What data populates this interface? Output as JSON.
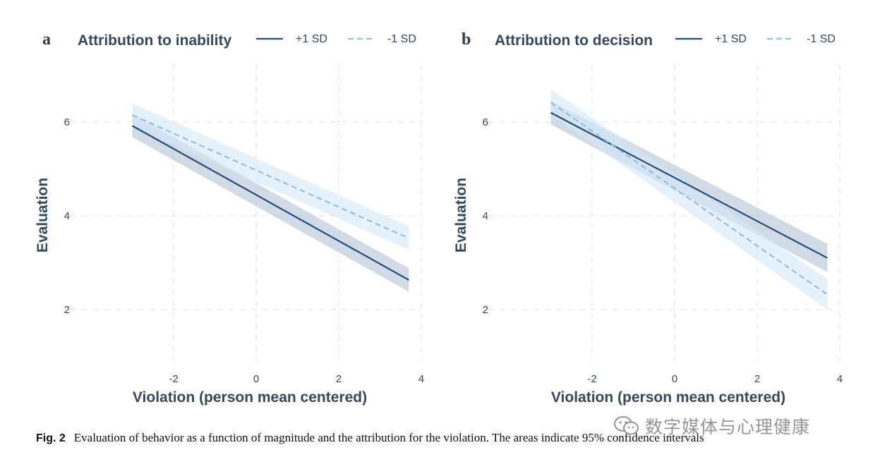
{
  "chart_data": [
    {
      "type": "line",
      "panel": "a",
      "title": "Attribution to inability",
      "xlabel": "Violation (person mean centered)",
      "ylabel": "Evaluation",
      "xlim": [
        -4,
        4
      ],
      "ylim": [
        0.9,
        7.25
      ],
      "xticks": [
        -2,
        0,
        2,
        4
      ],
      "yticks": [
        2,
        4,
        6
      ],
      "grid": true,
      "legend_position": "top-right",
      "series": [
        {
          "name": "+1 SD",
          "style": "solid",
          "color": "#1f4e79",
          "band_color": "#b3c3d6",
          "x": [
            -3.0,
            3.7
          ],
          "y": [
            5.92,
            2.63
          ],
          "lower": [
            5.68,
            2.38
          ],
          "upper": [
            6.17,
            2.88
          ]
        },
        {
          "name": "-1 SD",
          "style": "dashed",
          "color": "#90bfe3",
          "band_color": "#d3e7f8",
          "x": [
            -3.0,
            3.7
          ],
          "y": [
            6.15,
            3.52
          ],
          "lower": [
            5.9,
            3.27
          ],
          "upper": [
            6.4,
            3.78
          ]
        }
      ]
    },
    {
      "type": "line",
      "panel": "b",
      "title": "Attribution to decision",
      "xlabel": "Violation (person mean centered)",
      "ylabel": "Evaluation",
      "xlim": [
        -4,
        4
      ],
      "ylim": [
        0.9,
        7.25
      ],
      "xticks": [
        -2,
        0,
        2,
        4
      ],
      "yticks": [
        2,
        4,
        6
      ],
      "grid": true,
      "legend_position": "top-right",
      "series": [
        {
          "name": "+1 SD",
          "style": "solid",
          "color": "#1f4e79",
          "band_color": "#b3c3d6",
          "x": [
            -3.0,
            3.7
          ],
          "y": [
            6.2,
            3.1
          ],
          "lower": [
            5.95,
            2.8
          ],
          "upper": [
            6.45,
            3.4
          ]
        },
        {
          "name": "-1 SD",
          "style": "dashed",
          "color": "#90bfe3",
          "band_color": "#d3e7f8",
          "x": [
            -3.0,
            3.7
          ],
          "y": [
            6.42,
            2.32
          ],
          "lower": [
            6.15,
            2.0
          ],
          "upper": [
            6.7,
            2.65
          ]
        }
      ]
    }
  ],
  "caption": {
    "label": "Fig. 2",
    "text": "Evaluation of behavior as a function of magnitude and the attribution for the violation. The areas indicate 95% confidence intervals"
  },
  "watermark": {
    "icon": "wechat-icon",
    "text": "数字媒体与心理健康"
  }
}
